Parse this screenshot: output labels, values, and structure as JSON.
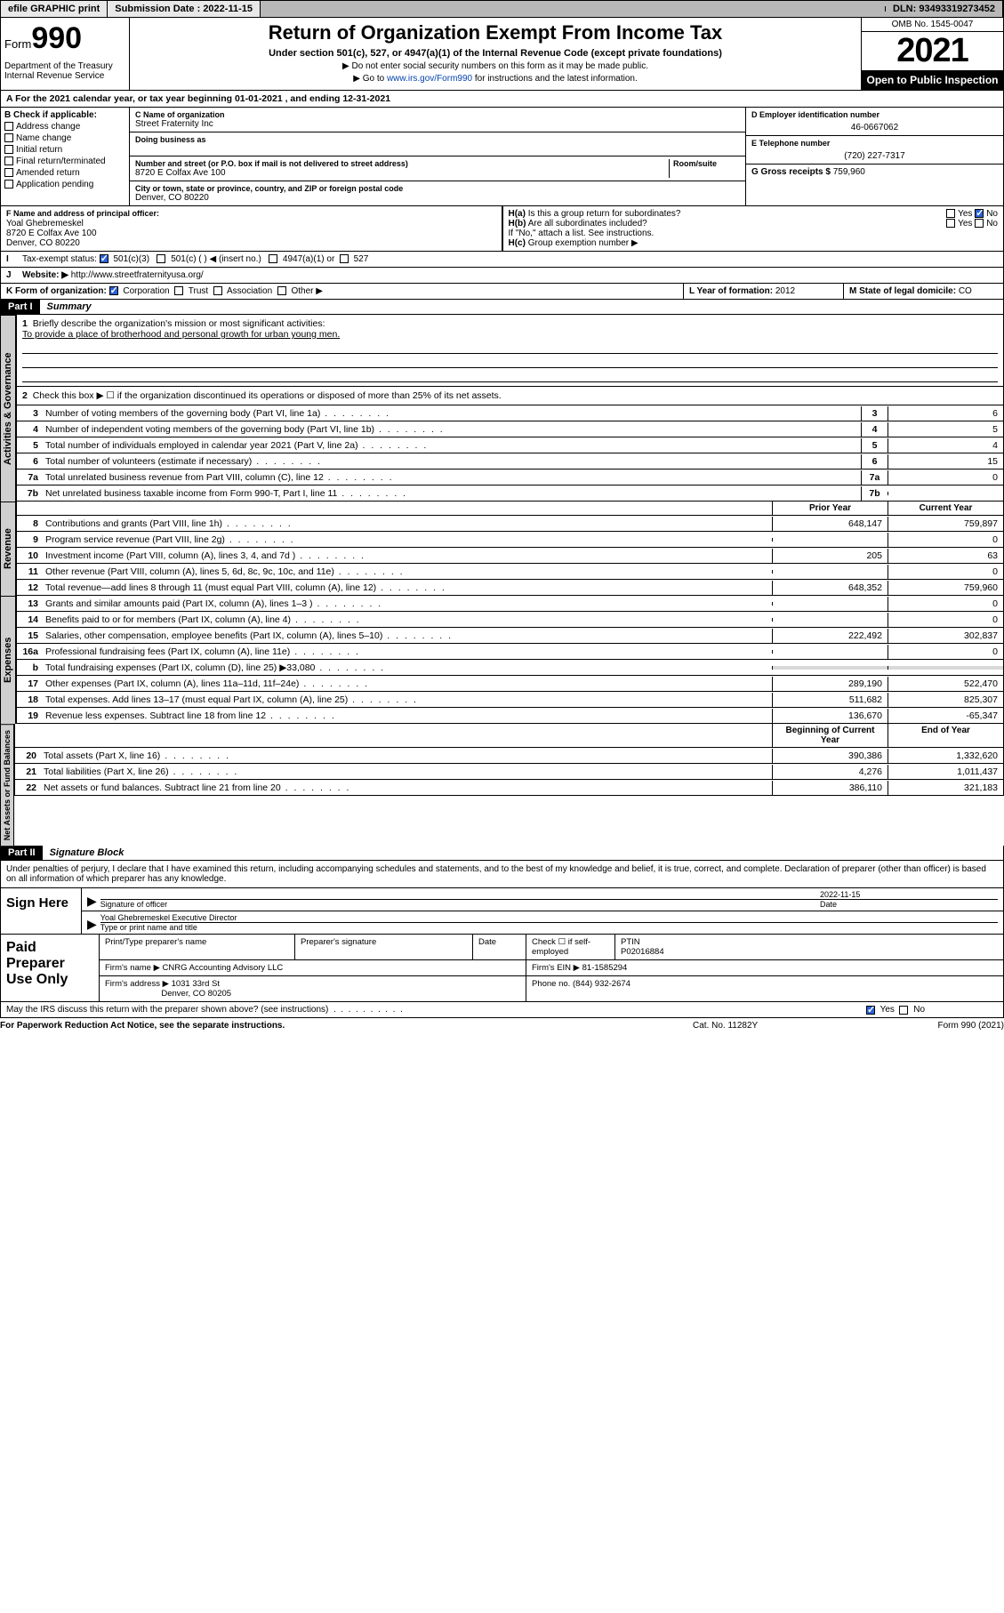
{
  "topbar": {
    "efile": "efile GRAPHIC print",
    "subdate_lbl": "Submission Date : 2022-11-15",
    "dln": "DLN: 93493319273452"
  },
  "header": {
    "form": "Form",
    "num": "990",
    "dept": "Department of the Treasury\nInternal Revenue Service",
    "title": "Return of Organization Exempt From Income Tax",
    "sub": "Under section 501(c), 527, or 4947(a)(1) of the Internal Revenue Code (except private foundations)",
    "note1": "▶ Do not enter social security numbers on this form as it may be made public.",
    "note2_pre": "▶ Go to ",
    "note2_link": "www.irs.gov/Form990",
    "note2_post": " for instructions and the latest information.",
    "omb": "OMB No. 1545-0047",
    "year": "2021",
    "inspect": "Open to Public Inspection"
  },
  "period": "A For the 2021 calendar year, or tax year beginning 01-01-2021    , and ending 12-31-2021",
  "B": {
    "hdr": "B Check if applicable:",
    "opts": [
      "Address change",
      "Name change",
      "Initial return",
      "Final return/terminated",
      "Amended return",
      "Application pending"
    ]
  },
  "C": {
    "name_lbl": "C Name of organization",
    "name": "Street Fraternity Inc",
    "dba_lbl": "Doing business as",
    "addr_lbl": "Number and street (or P.O. box if mail is not delivered to street address)",
    "room_lbl": "Room/suite",
    "addr": "8720 E Colfax Ave 100",
    "city_lbl": "City or town, state or province, country, and ZIP or foreign postal code",
    "city": "Denver, CO  80220"
  },
  "D": {
    "lbl": "D Employer identification number",
    "val": "46-0667062"
  },
  "E": {
    "lbl": "E Telephone number",
    "val": "(720) 227-7317"
  },
  "G": {
    "lbl": "G Gross receipts $",
    "val": "759,960"
  },
  "F": {
    "lbl": "F Name and address of principal officer:",
    "name": "Yoal Ghebremeskel",
    "addr1": "8720 E Colfax Ave 100",
    "addr2": "Denver, CO  80220"
  },
  "H": {
    "a": "Is this a group return for subordinates?",
    "b": "Are all subordinates included?",
    "bnote": "If \"No,\" attach a list. See instructions.",
    "c": "Group exemption number ▶"
  },
  "I": {
    "lbl": "Tax-exempt status:",
    "o1": "501(c)(3)",
    "o2": "501(c) (  ) ◀ (insert no.)",
    "o3": "4947(a)(1) or",
    "o4": "527"
  },
  "J": {
    "lbl": "Website: ▶",
    "val": "http://www.streetfraternityusa.org/"
  },
  "K": {
    "lbl": "K Form of organization:",
    "o1": "Corporation",
    "o2": "Trust",
    "o3": "Association",
    "o4": "Other ▶"
  },
  "L": {
    "lbl": "L Year of formation:",
    "val": "2012"
  },
  "M": {
    "lbl": "M State of legal domicile:",
    "val": "CO"
  },
  "part1": {
    "hdr": "Part I",
    "title": "Summary"
  },
  "summary": {
    "l1": "Briefly describe the organization's mission or most significant activities:",
    "mission": "To provide a place of brotherhood and personal growth for urban young men.",
    "l2": "Check this box ▶ ☐  if the organization discontinued its operations or disposed of more than 25% of its net assets.",
    "lines_gov": [
      {
        "n": "3",
        "d": "Number of voting members of the governing body (Part VI, line 1a)",
        "v": "6"
      },
      {
        "n": "4",
        "d": "Number of independent voting members of the governing body (Part VI, line 1b)",
        "v": "5"
      },
      {
        "n": "5",
        "d": "Total number of individuals employed in calendar year 2021 (Part V, line 2a)",
        "v": "4"
      },
      {
        "n": "6",
        "d": "Total number of volunteers (estimate if necessary)",
        "v": "15"
      },
      {
        "n": "7a",
        "d": "Total unrelated business revenue from Part VIII, column (C), line 12",
        "v": "0"
      },
      {
        "n": "7b",
        "d": "Net unrelated business taxable income from Form 990-T, Part I, line 11",
        "v": ""
      }
    ],
    "col_prior": "Prior Year",
    "col_curr": "Current Year",
    "rev": [
      {
        "n": "8",
        "d": "Contributions and grants (Part VIII, line 1h)",
        "p": "648,147",
        "c": "759,897"
      },
      {
        "n": "9",
        "d": "Program service revenue (Part VIII, line 2g)",
        "p": "",
        "c": "0"
      },
      {
        "n": "10",
        "d": "Investment income (Part VIII, column (A), lines 3, 4, and 7d )",
        "p": "205",
        "c": "63"
      },
      {
        "n": "11",
        "d": "Other revenue (Part VIII, column (A), lines 5, 6d, 8c, 9c, 10c, and 11e)",
        "p": "",
        "c": "0"
      },
      {
        "n": "12",
        "d": "Total revenue—add lines 8 through 11 (must equal Part VIII, column (A), line 12)",
        "p": "648,352",
        "c": "759,960"
      }
    ],
    "exp": [
      {
        "n": "13",
        "d": "Grants and similar amounts paid (Part IX, column (A), lines 1–3 )",
        "p": "",
        "c": "0"
      },
      {
        "n": "14",
        "d": "Benefits paid to or for members (Part IX, column (A), line 4)",
        "p": "",
        "c": "0"
      },
      {
        "n": "15",
        "d": "Salaries, other compensation, employee benefits (Part IX, column (A), lines 5–10)",
        "p": "222,492",
        "c": "302,837"
      },
      {
        "n": "16a",
        "d": "Professional fundraising fees (Part IX, column (A), line 11e)",
        "p": "",
        "c": "0"
      },
      {
        "n": "b",
        "d": "Total fundraising expenses (Part IX, column (D), line 25) ▶33,080",
        "p": "shaded",
        "c": "shaded"
      },
      {
        "n": "17",
        "d": "Other expenses (Part IX, column (A), lines 11a–11d, 11f–24e)",
        "p": "289,190",
        "c": "522,470"
      },
      {
        "n": "18",
        "d": "Total expenses. Add lines 13–17 (must equal Part IX, column (A), line 25)",
        "p": "511,682",
        "c": "825,307"
      },
      {
        "n": "19",
        "d": "Revenue less expenses. Subtract line 18 from line 12",
        "p": "136,670",
        "c": "-65,347"
      }
    ],
    "col_beg": "Beginning of Current Year",
    "col_end": "End of Year",
    "net": [
      {
        "n": "20",
        "d": "Total assets (Part X, line 16)",
        "p": "390,386",
        "c": "1,332,620"
      },
      {
        "n": "21",
        "d": "Total liabilities (Part X, line 26)",
        "p": "4,276",
        "c": "1,011,437"
      },
      {
        "n": "22",
        "d": "Net assets or fund balances. Subtract line 21 from line 20",
        "p": "386,110",
        "c": "321,183"
      }
    ]
  },
  "part2": {
    "hdr": "Part II",
    "title": "Signature Block"
  },
  "sig": {
    "decl": "Under penalties of perjury, I declare that I have examined this return, including accompanying schedules and statements, and to the best of my knowledge and belief, it is true, correct, and complete. Declaration of preparer (other than officer) is based on all information of which preparer has any knowledge.",
    "sign_here": "Sign Here",
    "sig_officer": "Signature of officer",
    "date_lbl": "Date",
    "date": "2022-11-15",
    "name": "Yoal Ghebremeskel  Executive Director",
    "name_lbl": "Type or print name and title"
  },
  "prep": {
    "lbl": "Paid Preparer Use Only",
    "h1": "Print/Type preparer's name",
    "h2": "Preparer's signature",
    "h3": "Date",
    "h4": "Check ☐ if self-employed",
    "h5": "PTIN",
    "ptin": "P02016884",
    "firm_lbl": "Firm's name   ▶",
    "firm": "CNRG Accounting Advisory LLC",
    "ein_lbl": "Firm's EIN ▶",
    "ein": "81-1585294",
    "addr_lbl": "Firm's address ▶",
    "addr1": "1031 33rd St",
    "addr2": "Denver, CO  80205",
    "phone_lbl": "Phone no.",
    "phone": "(844) 932-2674"
  },
  "discuss": "May the IRS discuss this return with the preparer shown above? (see instructions)",
  "footer": {
    "f1": "For Paperwork Reduction Act Notice, see the separate instructions.",
    "f2": "Cat. No. 11282Y",
    "f3": "Form 990 (2021)"
  },
  "tabs": {
    "gov": "Activities & Governance",
    "rev": "Revenue",
    "exp": "Expenses",
    "net": "Net Assets or Fund Balances"
  }
}
